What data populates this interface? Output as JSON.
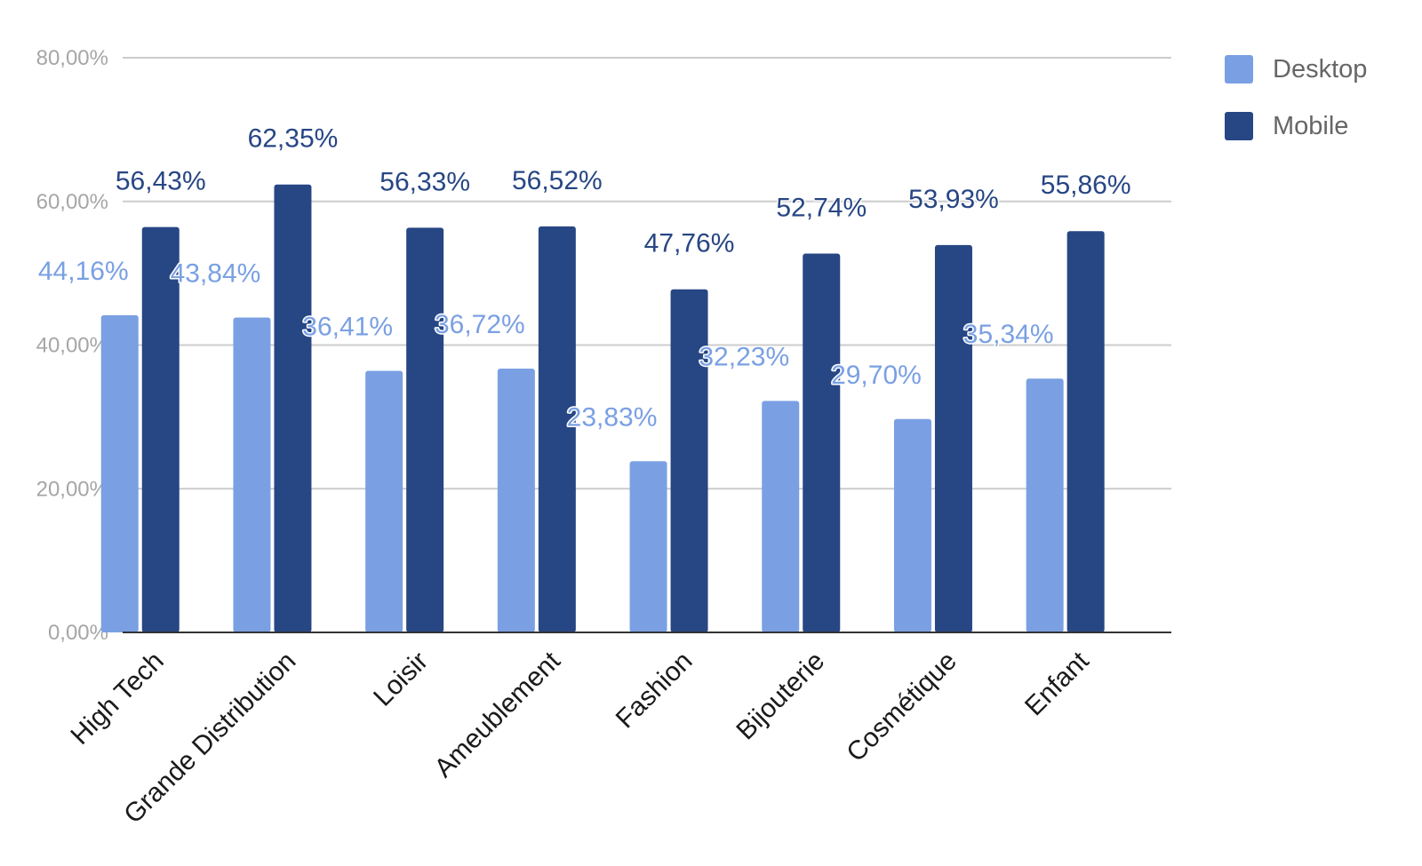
{
  "chart_data": {
    "type": "bar",
    "title": "",
    "xlabel": "",
    "ylabel": "",
    "ylim": [
      0,
      80
    ],
    "yticks": [
      "0,00%",
      "20,00%",
      "40,00%",
      "60,00%",
      "80,00%"
    ],
    "grid": true,
    "legend_position": "top-right",
    "categories": [
      "High Tech",
      "Grande Distribution",
      "Loisir",
      "Ameublement",
      "Fashion",
      "Bijouterie",
      "Cosmétique",
      "Enfant"
    ],
    "series": [
      {
        "name": "Desktop",
        "color": "#7aa0e3",
        "values": [
          44.16,
          43.84,
          36.41,
          36.72,
          23.83,
          32.23,
          29.7,
          35.34
        ],
        "labels": [
          "44,16%",
          "43,84%",
          "36,41%",
          "36,72%",
          "23,83%",
          "32,23%",
          "29,70%",
          "35,34%"
        ]
      },
      {
        "name": "Mobile",
        "color": "#274684",
        "values": [
          56.43,
          62.35,
          56.33,
          56.52,
          47.76,
          52.74,
          53.93,
          55.86
        ],
        "labels": [
          "56,43%",
          "62,35%",
          "56,33%",
          "56,52%",
          "47,76%",
          "52,74%",
          "53,93%",
          "55,86%"
        ]
      }
    ]
  }
}
